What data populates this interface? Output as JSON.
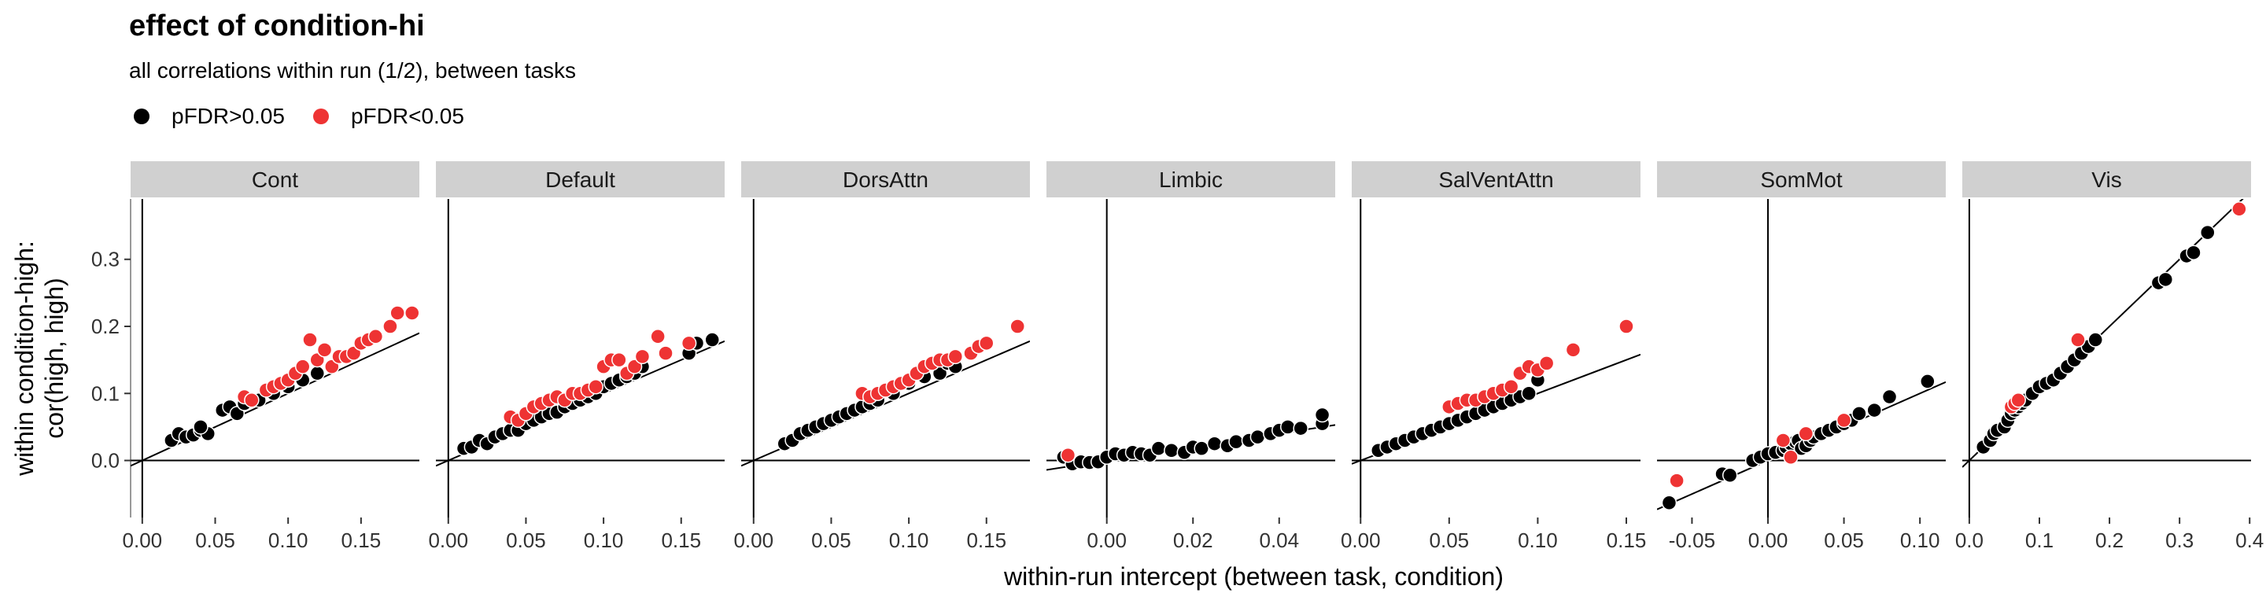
{
  "chart_data": {
    "type": "scatter",
    "title": "effect of condition-hi",
    "subtitle": "all correlations within run (1/2), between tasks",
    "xlabel": "within-run intercept (between task, condition)",
    "ylabel_lines": [
      "within condition-high:",
      "cor(high, high)"
    ],
    "legend": {
      "placement": "top-left",
      "entries": [
        {
          "label": "pFDR>0.05",
          "color": "#000000"
        },
        {
          "label": "pFDR<0.05",
          "color": "#ee3333"
        }
      ]
    },
    "y_ticks": [
      0.0,
      0.1,
      0.2,
      0.3
    ],
    "y_tick_labels": [
      "0.0",
      "0.1",
      "0.2",
      "0.3"
    ],
    "ylim": [
      -0.085,
      0.39
    ],
    "grid": false,
    "facet_strip_color": "#d0d0d0",
    "panels": [
      {
        "name": "Cont",
        "xlim": [
          -0.008,
          0.19
        ],
        "x_ticks": [
          0.0,
          0.05,
          0.1,
          0.15
        ],
        "x_tick_labels": [
          "0.00",
          "0.05",
          "0.10",
          "0.15"
        ],
        "fit_line": {
          "slope": 1.0,
          "intercept": 0.0
        },
        "points_ns": [
          [
            0.02,
            0.03
          ],
          [
            0.025,
            0.04
          ],
          [
            0.03,
            0.035
          ],
          [
            0.035,
            0.038
          ],
          [
            0.04,
            0.045
          ],
          [
            0.045,
            0.04
          ],
          [
            0.04,
            0.05
          ],
          [
            0.055,
            0.075
          ],
          [
            0.06,
            0.08
          ],
          [
            0.065,
            0.07
          ],
          [
            0.07,
            0.085
          ],
          [
            0.08,
            0.09
          ],
          [
            0.09,
            0.1
          ],
          [
            0.1,
            0.11
          ],
          [
            0.11,
            0.12
          ],
          [
            0.12,
            0.13
          ]
        ],
        "points_sig": [
          [
            0.07,
            0.095
          ],
          [
            0.075,
            0.09
          ],
          [
            0.085,
            0.105
          ],
          [
            0.09,
            0.11
          ],
          [
            0.095,
            0.115
          ],
          [
            0.1,
            0.12
          ],
          [
            0.105,
            0.13
          ],
          [
            0.11,
            0.14
          ],
          [
            0.115,
            0.18
          ],
          [
            0.12,
            0.15
          ],
          [
            0.125,
            0.165
          ],
          [
            0.13,
            0.14
          ],
          [
            0.135,
            0.155
          ],
          [
            0.14,
            0.155
          ],
          [
            0.145,
            0.16
          ],
          [
            0.15,
            0.175
          ],
          [
            0.155,
            0.18
          ],
          [
            0.16,
            0.185
          ],
          [
            0.17,
            0.2
          ],
          [
            0.175,
            0.22
          ],
          [
            0.185,
            0.22
          ]
        ]
      },
      {
        "name": "Default",
        "xlim": [
          -0.008,
          0.178
        ],
        "x_ticks": [
          0.0,
          0.05,
          0.1,
          0.15
        ],
        "x_tick_labels": [
          "0.00",
          "0.05",
          "0.10",
          "0.15"
        ],
        "fit_line": {
          "slope": 1.0,
          "intercept": 0.0
        },
        "points_ns": [
          [
            0.01,
            0.018
          ],
          [
            0.015,
            0.02
          ],
          [
            0.02,
            0.03
          ],
          [
            0.025,
            0.025
          ],
          [
            0.03,
            0.035
          ],
          [
            0.035,
            0.04
          ],
          [
            0.04,
            0.045
          ],
          [
            0.045,
            0.045
          ],
          [
            0.05,
            0.055
          ],
          [
            0.055,
            0.06
          ],
          [
            0.06,
            0.065
          ],
          [
            0.065,
            0.07
          ],
          [
            0.07,
            0.072
          ],
          [
            0.075,
            0.08
          ],
          [
            0.08,
            0.085
          ],
          [
            0.085,
            0.09
          ],
          [
            0.09,
            0.095
          ],
          [
            0.095,
            0.1
          ],
          [
            0.1,
            0.11
          ],
          [
            0.105,
            0.115
          ],
          [
            0.11,
            0.12
          ],
          [
            0.115,
            0.125
          ],
          [
            0.12,
            0.13
          ],
          [
            0.125,
            0.14
          ],
          [
            0.155,
            0.16
          ],
          [
            0.16,
            0.175
          ],
          [
            0.17,
            0.18
          ]
        ],
        "points_sig": [
          [
            0.04,
            0.065
          ],
          [
            0.045,
            0.06
          ],
          [
            0.05,
            0.07
          ],
          [
            0.055,
            0.08
          ],
          [
            0.06,
            0.085
          ],
          [
            0.065,
            0.09
          ],
          [
            0.07,
            0.095
          ],
          [
            0.075,
            0.09
          ],
          [
            0.08,
            0.1
          ],
          [
            0.085,
            0.1
          ],
          [
            0.09,
            0.105
          ],
          [
            0.095,
            0.11
          ],
          [
            0.1,
            0.14
          ],
          [
            0.105,
            0.15
          ],
          [
            0.11,
            0.15
          ],
          [
            0.115,
            0.13
          ],
          [
            0.12,
            0.14
          ],
          [
            0.125,
            0.155
          ],
          [
            0.135,
            0.185
          ],
          [
            0.14,
            0.16
          ],
          [
            0.155,
            0.175
          ]
        ]
      },
      {
        "name": "DorsAttn",
        "xlim": [
          -0.008,
          0.178
        ],
        "x_ticks": [
          0.0,
          0.05,
          0.1,
          0.15
        ],
        "x_tick_labels": [
          "0.00",
          "0.05",
          "0.10",
          "0.15"
        ],
        "fit_line": {
          "slope": 1.0,
          "intercept": 0.0
        },
        "points_ns": [
          [
            0.02,
            0.025
          ],
          [
            0.025,
            0.03
          ],
          [
            0.03,
            0.04
          ],
          [
            0.035,
            0.045
          ],
          [
            0.04,
            0.05
          ],
          [
            0.045,
            0.055
          ],
          [
            0.05,
            0.06
          ],
          [
            0.055,
            0.065
          ],
          [
            0.06,
            0.07
          ],
          [
            0.065,
            0.075
          ],
          [
            0.07,
            0.08
          ],
          [
            0.075,
            0.085
          ],
          [
            0.08,
            0.09
          ],
          [
            0.09,
            0.1
          ],
          [
            0.1,
            0.115
          ],
          [
            0.11,
            0.125
          ],
          [
            0.12,
            0.13
          ],
          [
            0.125,
            0.145
          ],
          [
            0.13,
            0.14
          ]
        ],
        "points_sig": [
          [
            0.07,
            0.1
          ],
          [
            0.075,
            0.095
          ],
          [
            0.08,
            0.1
          ],
          [
            0.085,
            0.105
          ],
          [
            0.09,
            0.11
          ],
          [
            0.095,
            0.115
          ],
          [
            0.1,
            0.12
          ],
          [
            0.105,
            0.13
          ],
          [
            0.11,
            0.14
          ],
          [
            0.115,
            0.145
          ],
          [
            0.12,
            0.15
          ],
          [
            0.125,
            0.15
          ],
          [
            0.13,
            0.155
          ],
          [
            0.14,
            0.16
          ],
          [
            0.145,
            0.17
          ],
          [
            0.15,
            0.175
          ],
          [
            0.17,
            0.2
          ]
        ]
      },
      {
        "name": "Limbic",
        "xlim": [
          -0.014,
          0.053
        ],
        "x_ticks": [
          0.0,
          0.02,
          0.04
        ],
        "x_tick_labels": [
          "0.00",
          "0.02",
          "0.04"
        ],
        "fit_line": {
          "slope": 1.0,
          "intercept": 0.0
        },
        "points_ns": [
          [
            -0.01,
            0.005
          ],
          [
            -0.008,
            -0.005
          ],
          [
            -0.006,
            -0.002
          ],
          [
            -0.004,
            -0.003
          ],
          [
            -0.002,
            -0.002
          ],
          [
            0.0,
            0.005
          ],
          [
            0.002,
            0.01
          ],
          [
            0.004,
            0.008
          ],
          [
            0.006,
            0.012
          ],
          [
            0.008,
            0.01
          ],
          [
            0.01,
            0.008
          ],
          [
            0.012,
            0.018
          ],
          [
            0.015,
            0.015
          ],
          [
            0.018,
            0.012
          ],
          [
            0.02,
            0.02
          ],
          [
            0.022,
            0.018
          ],
          [
            0.025,
            0.025
          ],
          [
            0.028,
            0.022
          ],
          [
            0.03,
            0.028
          ],
          [
            0.033,
            0.03
          ],
          [
            0.035,
            0.035
          ],
          [
            0.038,
            0.04
          ],
          [
            0.04,
            0.045
          ],
          [
            0.042,
            0.05
          ],
          [
            0.045,
            0.048
          ],
          [
            0.05,
            0.055
          ],
          [
            0.05,
            0.068
          ]
        ],
        "points_sig": [
          [
            -0.009,
            0.008
          ]
        ]
      },
      {
        "name": "SalVentAttn",
        "xlim": [
          -0.005,
          0.158
        ],
        "x_ticks": [
          0.0,
          0.05,
          0.1,
          0.15
        ],
        "x_tick_labels": [
          "0.00",
          "0.05",
          "0.10",
          "0.15"
        ],
        "fit_line": {
          "slope": 1.0,
          "intercept": 0.0
        },
        "points_ns": [
          [
            0.01,
            0.015
          ],
          [
            0.015,
            0.02
          ],
          [
            0.02,
            0.025
          ],
          [
            0.025,
            0.03
          ],
          [
            0.03,
            0.035
          ],
          [
            0.035,
            0.04
          ],
          [
            0.04,
            0.045
          ],
          [
            0.045,
            0.05
          ],
          [
            0.05,
            0.055
          ],
          [
            0.055,
            0.06
          ],
          [
            0.06,
            0.065
          ],
          [
            0.065,
            0.07
          ],
          [
            0.07,
            0.075
          ],
          [
            0.075,
            0.08
          ],
          [
            0.08,
            0.085
          ],
          [
            0.085,
            0.09
          ],
          [
            0.09,
            0.095
          ],
          [
            0.095,
            0.1
          ],
          [
            0.1,
            0.12
          ]
        ],
        "points_sig": [
          [
            0.05,
            0.08
          ],
          [
            0.055,
            0.085
          ],
          [
            0.06,
            0.09
          ],
          [
            0.065,
            0.09
          ],
          [
            0.07,
            0.095
          ],
          [
            0.075,
            0.1
          ],
          [
            0.08,
            0.105
          ],
          [
            0.085,
            0.11
          ],
          [
            0.09,
            0.13
          ],
          [
            0.095,
            0.14
          ],
          [
            0.1,
            0.135
          ],
          [
            0.105,
            0.145
          ],
          [
            0.12,
            0.165
          ],
          [
            0.15,
            0.2
          ]
        ]
      },
      {
        "name": "SomMot",
        "xlim": [
          -0.073,
          0.117
        ],
        "x_ticks": [
          -0.05,
          0.0,
          0.05,
          0.1
        ],
        "x_tick_labels": [
          "-0.05",
          "0.00",
          "0.05",
          "0.10"
        ],
        "fit_line": {
          "slope": 1.0,
          "intercept": 0.0
        },
        "points_ns": [
          [
            -0.065,
            -0.063
          ],
          [
            -0.03,
            -0.02
          ],
          [
            -0.025,
            -0.022
          ],
          [
            -0.01,
            0.0
          ],
          [
            -0.005,
            0.005
          ],
          [
            0.0,
            0.01
          ],
          [
            0.005,
            0.012
          ],
          [
            0.01,
            0.015
          ],
          [
            0.012,
            0.02
          ],
          [
            0.015,
            0.025
          ],
          [
            0.018,
            0.028
          ],
          [
            0.02,
            0.03
          ],
          [
            0.022,
            0.018
          ],
          [
            0.025,
            0.022
          ],
          [
            0.028,
            0.03
          ],
          [
            0.03,
            0.035
          ],
          [
            0.035,
            0.04
          ],
          [
            0.04,
            0.045
          ],
          [
            0.045,
            0.05
          ],
          [
            0.05,
            0.055
          ],
          [
            0.055,
            0.06
          ],
          [
            0.06,
            0.07
          ],
          [
            0.07,
            0.075
          ],
          [
            0.08,
            0.095
          ],
          [
            0.105,
            0.118
          ]
        ],
        "points_sig": [
          [
            -0.06,
            -0.03
          ],
          [
            0.01,
            0.03
          ],
          [
            0.015,
            0.005
          ],
          [
            0.025,
            0.04
          ],
          [
            0.05,
            0.06
          ]
        ]
      },
      {
        "name": "Vis",
        "xlim": [
          -0.01,
          0.402
        ],
        "x_ticks": [
          0.0,
          0.1,
          0.2,
          0.3,
          0.4
        ],
        "x_tick_labels": [
          "0.0",
          "0.1",
          "0.2",
          "0.3",
          "0.4"
        ],
        "fit_line": {
          "slope": 1.0,
          "intercept": 0.0
        },
        "points_ns": [
          [
            0.02,
            0.02
          ],
          [
            0.03,
            0.03
          ],
          [
            0.035,
            0.04
          ],
          [
            0.04,
            0.045
          ],
          [
            0.05,
            0.05
          ],
          [
            0.055,
            0.06
          ],
          [
            0.06,
            0.07
          ],
          [
            0.065,
            0.075
          ],
          [
            0.07,
            0.08
          ],
          [
            0.075,
            0.085
          ],
          [
            0.08,
            0.09
          ],
          [
            0.09,
            0.1
          ],
          [
            0.1,
            0.11
          ],
          [
            0.11,
            0.115
          ],
          [
            0.12,
            0.12
          ],
          [
            0.13,
            0.13
          ],
          [
            0.14,
            0.14
          ],
          [
            0.15,
            0.15
          ],
          [
            0.16,
            0.16
          ],
          [
            0.17,
            0.17
          ],
          [
            0.18,
            0.18
          ],
          [
            0.27,
            0.265
          ],
          [
            0.28,
            0.27
          ],
          [
            0.31,
            0.305
          ],
          [
            0.32,
            0.31
          ],
          [
            0.34,
            0.34
          ]
        ],
        "points_sig": [
          [
            0.06,
            0.08
          ],
          [
            0.065,
            0.085
          ],
          [
            0.07,
            0.09
          ],
          [
            0.155,
            0.18
          ],
          [
            0.385,
            0.375
          ]
        ]
      }
    ]
  }
}
